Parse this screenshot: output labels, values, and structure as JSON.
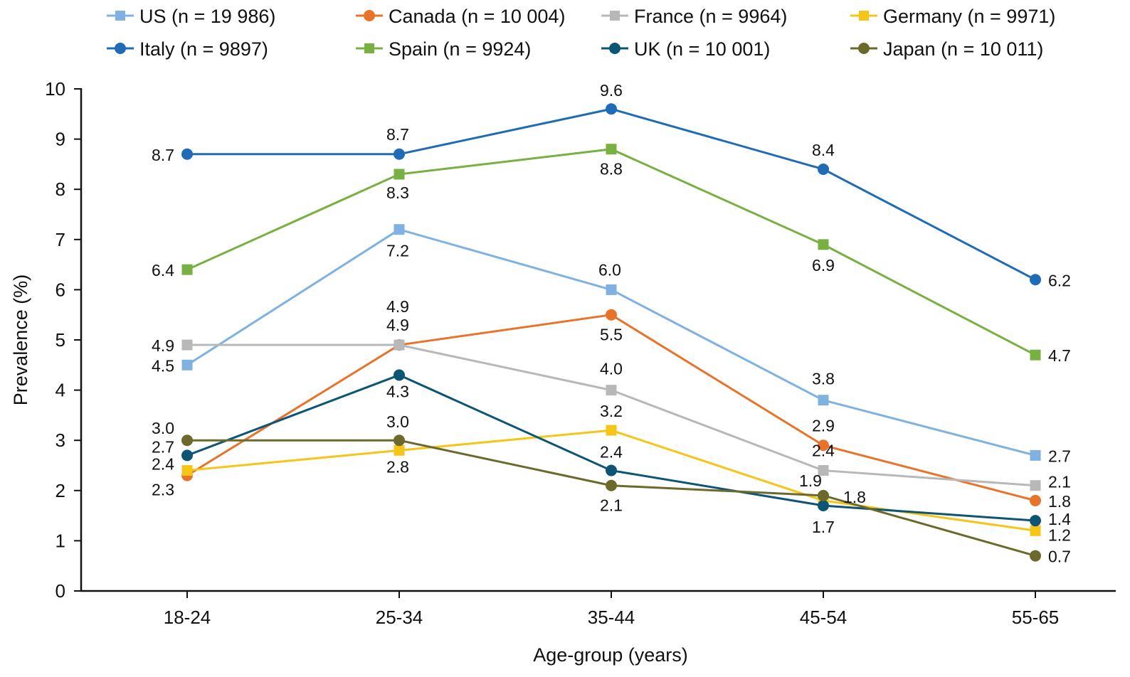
{
  "chart_data": {
    "type": "line",
    "title": "",
    "xlabel": "Age-group (years)",
    "ylabel": "Prevalence (%)",
    "ylim": [
      0,
      10
    ],
    "yticks": [
      "0",
      "1",
      "2",
      "3",
      "4",
      "5",
      "6",
      "7",
      "8",
      "9",
      "10"
    ],
    "categories": [
      "18-24",
      "25-34",
      "35-44",
      "45-54",
      "55-65"
    ],
    "grid": false,
    "legend_position": "top",
    "series": [
      {
        "name": "US (n = 19 986)",
        "color": "#7fb2e0",
        "marker": "square",
        "values": [
          4.5,
          7.2,
          6.0,
          3.8,
          2.7
        ],
        "labels": [
          "4.5",
          "7.2",
          "6.0",
          "3.8",
          "2.7"
        ]
      },
      {
        "name": "Canada (n = 10 004)",
        "color": "#e8732a",
        "marker": "circle",
        "values": [
          2.3,
          4.9,
          5.5,
          2.9,
          1.8
        ],
        "labels": [
          "2.3",
          "4.9",
          "5.5",
          "2.9",
          "1.8"
        ]
      },
      {
        "name": "France (n = 9964)",
        "color": "#b8b8b8",
        "marker": "square",
        "values": [
          4.9,
          4.9,
          4.0,
          2.4,
          2.1
        ],
        "labels": [
          "4.9",
          "4.9",
          "4.0",
          "2.4",
          "2.1"
        ]
      },
      {
        "name": "Germany (n = 9971)",
        "color": "#f5c518",
        "marker": "square",
        "values": [
          2.4,
          2.8,
          3.2,
          1.8,
          1.2
        ],
        "labels": [
          "2.4",
          "2.8",
          "3.2",
          "1.8",
          "1.2"
        ]
      },
      {
        "name": "Italy (n = 9897)",
        "color": "#1f6bb5",
        "marker": "circle",
        "values": [
          8.7,
          8.7,
          9.6,
          8.4,
          6.2
        ],
        "labels": [
          "8.7",
          "8.7",
          "9.6",
          "8.4",
          "6.2"
        ]
      },
      {
        "name": "Spain (n = 9924)",
        "color": "#78b042",
        "marker": "square",
        "values": [
          6.4,
          8.3,
          8.8,
          6.9,
          4.7
        ],
        "labels": [
          "6.4",
          "8.3",
          "8.8",
          "6.9",
          "4.7"
        ]
      },
      {
        "name": "UK (n = 10 001)",
        "color": "#0d5575",
        "marker": "circle",
        "values": [
          2.7,
          4.3,
          2.4,
          1.7,
          1.4
        ],
        "labels": [
          "2.7",
          "4.3",
          "2.4",
          "1.7",
          "1.4"
        ]
      },
      {
        "name": "Japan (n = 10 011)",
        "color": "#6b6a2c",
        "marker": "circle",
        "values": [
          3.0,
          3.0,
          2.1,
          1.9,
          0.7
        ],
        "labels": [
          "3.0",
          "3.0",
          "2.1",
          "1.9",
          "0.7"
        ]
      }
    ]
  }
}
